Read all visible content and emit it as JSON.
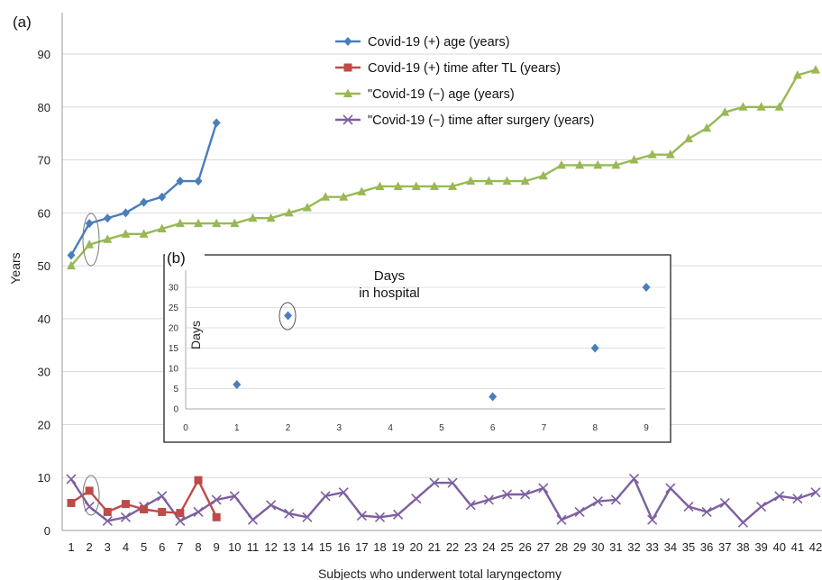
{
  "chart_data": [
    {
      "panel_label": "(a)",
      "type": "line",
      "xlabel": "Subjects who underwent total laryngectomy",
      "ylabel": "Years",
      "xlim": [
        1,
        42
      ],
      "ylim": [
        0,
        90
      ],
      "yticks": [
        0,
        10,
        20,
        30,
        40,
        50,
        60,
        70,
        80,
        90
      ],
      "grid": "horizontal",
      "legend_position": "top-right",
      "categories": [
        1,
        2,
        3,
        4,
        5,
        6,
        7,
        8,
        9,
        10,
        11,
        12,
        13,
        14,
        15,
        16,
        17,
        18,
        19,
        20,
        21,
        22,
        23,
        24,
        25,
        26,
        27,
        28,
        29,
        30,
        31,
        32,
        33,
        34,
        35,
        36,
        37,
        38,
        39,
        40,
        41,
        42
      ],
      "series": [
        {
          "name": "Covid-19 (+) age (years)",
          "color": "#4a7ebb",
          "marker": "diamond",
          "x": [
            1,
            2,
            3,
            4,
            5,
            6,
            7,
            8,
            9
          ],
          "values": [
            52,
            58,
            59,
            60,
            62,
            63,
            66,
            66,
            77
          ]
        },
        {
          "name": "Covid-19 (+) time after TL (years)",
          "color": "#be4b48",
          "marker": "square",
          "x": [
            1,
            2,
            3,
            4,
            5,
            6,
            7,
            8,
            9
          ],
          "values": [
            5.2,
            7.5,
            3.5,
            5.0,
            4.0,
            3.5,
            3.3,
            9.5,
            2.5
          ]
        },
        {
          "name": "\"Covid-19 (−) age (years)",
          "color": "#98b954",
          "marker": "triangle",
          "x": [
            1,
            2,
            3,
            4,
            5,
            6,
            7,
            8,
            9,
            10,
            11,
            12,
            13,
            14,
            15,
            16,
            17,
            18,
            19,
            20,
            21,
            22,
            23,
            24,
            25,
            26,
            27,
            28,
            29,
            30,
            31,
            32,
            33,
            34,
            35,
            36,
            37,
            38,
            39,
            40,
            41,
            42
          ],
          "values": [
            50,
            54,
            55,
            56,
            56,
            57,
            58,
            58,
            58,
            58,
            59,
            59,
            60,
            61,
            63,
            63,
            64,
            65,
            65,
            65,
            65,
            65,
            66,
            66,
            66,
            66,
            67,
            69,
            69,
            69,
            69,
            70,
            71,
            71,
            74,
            76,
            79,
            80,
            80,
            80,
            86,
            87
          ]
        },
        {
          "name": "\"Covid-19 (−) time after surgery (years)",
          "color": "#7d5fa0",
          "marker": "x",
          "x": [
            1,
            2,
            3,
            4,
            5,
            6,
            7,
            8,
            9,
            10,
            11,
            12,
            13,
            14,
            15,
            16,
            17,
            18,
            19,
            20,
            21,
            22,
            23,
            24,
            25,
            26,
            27,
            28,
            29,
            30,
            31,
            32,
            33,
            34,
            35,
            36,
            37,
            38,
            39,
            40,
            41,
            42
          ],
          "values": [
            9.7,
            4.5,
            1.8,
            2.5,
            4.5,
            6.5,
            1.8,
            3.5,
            5.8,
            6.5,
            2.0,
            4.8,
            3.2,
            2.5,
            6.5,
            7.2,
            2.8,
            2.5,
            3.0,
            6.0,
            9.0,
            9.0,
            4.8,
            5.8,
            6.8,
            6.8,
            8.0,
            2.0,
            3.5,
            5.5,
            5.8,
            9.8,
            2.0,
            8.0,
            4.5,
            3.5,
            5.2,
            1.5,
            4.5,
            6.5,
            6.0,
            7.2
          ]
        }
      ],
      "annotations": [
        "ellipse around subject 2"
      ]
    },
    {
      "panel_label": "(b)",
      "type": "scatter",
      "title_line1": "Days",
      "title_line2": "in hospital",
      "ylabel": "Days",
      "xlim": [
        0,
        9
      ],
      "ylim": [
        0,
        30
      ],
      "xticks": [
        0,
        1,
        2,
        3,
        4,
        5,
        6,
        7,
        8,
        9
      ],
      "yticks": [
        0,
        5,
        10,
        15,
        20,
        25,
        30
      ],
      "grid": "horizontal",
      "series": [
        {
          "color": "#4a7ebb",
          "marker": "diamond",
          "x": [
            1,
            2,
            6,
            8,
            9
          ],
          "values": [
            6,
            23,
            3,
            15,
            30
          ]
        }
      ],
      "annotations": [
        "ellipse around subject 2"
      ]
    }
  ]
}
